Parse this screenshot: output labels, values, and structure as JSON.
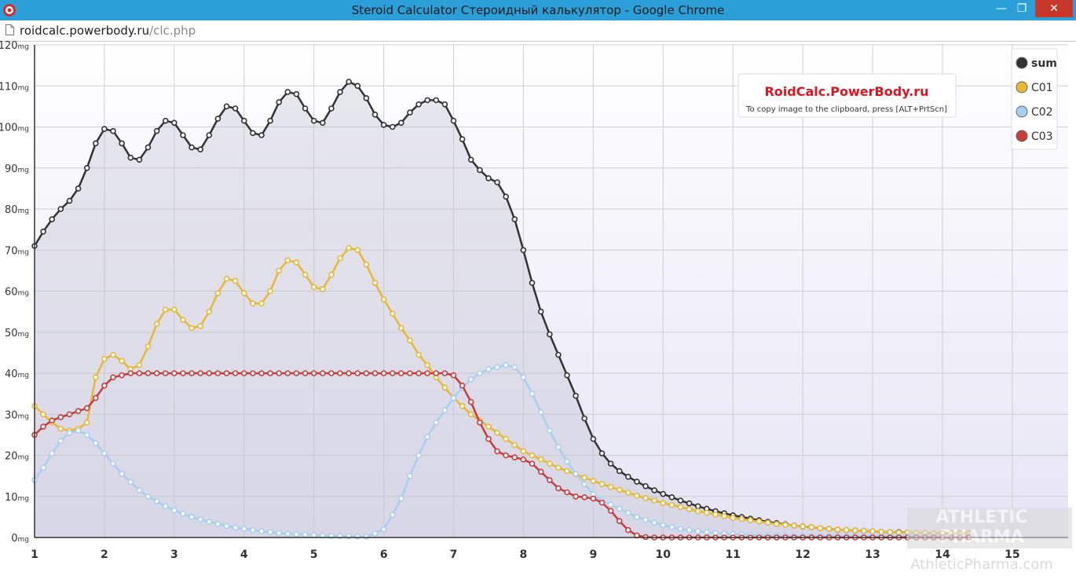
{
  "window": {
    "title": "Steroid Calculator Стероидный калькулятор - Google Chrome",
    "min_glyph": "—",
    "max_glyph": "❐",
    "close_glyph": "✕"
  },
  "address_bar": {
    "host": "roidcalc.powerbody.ru",
    "path": "/clc.php"
  },
  "watermark": {
    "line1": "ATHLETIC",
    "line2": "PHARMA",
    "url": "AthleticPharma.com"
  },
  "chart_data": {
    "type": "line",
    "title": "RoidCalc.PowerBody.ru",
    "subtitle": "To copy image to the clipboard, press [ALT+PrtScn]",
    "xlabel": "",
    "ylabel": "",
    "xlim": [
      1,
      15.8
    ],
    "ylim": [
      0,
      120
    ],
    "x_ticks": [
      1,
      2,
      3,
      4,
      5,
      6,
      7,
      8,
      9,
      10,
      11,
      12,
      13,
      14,
      15
    ],
    "y_ticks": [
      0,
      10,
      20,
      30,
      40,
      50,
      60,
      70,
      80,
      90,
      100,
      110,
      120
    ],
    "y_unit": "mg",
    "step": 0.125,
    "grid": true,
    "legend_position": "top-right",
    "series": [
      {
        "name": "sum",
        "color": "#333333",
        "fill": true,
        "values": [
          71,
          74.5,
          77.5,
          80,
          82,
          85,
          90,
          96,
          99.5,
          99,
          96,
          92.5,
          92,
          95,
          99,
          101.5,
          101,
          98,
          95,
          94.5,
          98,
          102,
          105,
          104.5,
          101.5,
          98.5,
          98,
          101.5,
          106,
          108.5,
          108,
          104.5,
          101.5,
          101,
          104.5,
          108.5,
          111,
          110,
          107,
          103,
          100.5,
          100,
          101,
          103.5,
          105.5,
          106.5,
          106.5,
          105.5,
          101.5,
          97,
          92,
          89.5,
          87.5,
          86.5,
          83,
          77.5,
          70,
          62,
          55,
          49.5,
          44.5,
          39.5,
          34.5,
          29,
          24,
          20.5,
          18,
          16.2,
          14.8,
          13.6,
          12.5,
          11.5,
          10.6,
          9.8,
          9,
          8.3,
          7.6,
          7,
          6.4,
          5.9,
          5.4,
          5,
          4.6,
          4.2,
          3.8,
          3.5,
          3.2,
          2.9,
          2.7,
          2.5,
          2.3,
          2.1,
          1.9,
          1.8,
          1.7,
          1.6,
          1.5,
          1.4,
          1.3,
          1.3,
          1.2,
          1.1,
          1.1,
          1.0,
          1.0,
          1.0,
          1.0,
          1.0
        ]
      },
      {
        "name": "C01",
        "color": "#e8b830",
        "fill": false,
        "values": [
          32,
          30,
          28,
          26.5,
          26,
          26.5,
          28,
          39,
          43.5,
          44.5,
          43,
          41,
          42,
          46.5,
          52,
          55.5,
          55.5,
          53,
          51,
          51.5,
          55,
          59.5,
          63,
          62.5,
          59.5,
          57,
          57,
          60,
          65,
          67.5,
          67,
          64,
          61,
          60.5,
          64,
          68,
          70.5,
          70,
          66.5,
          62,
          58,
          54.5,
          51,
          48,
          44.5,
          42,
          39,
          36.5,
          34,
          32,
          30,
          28.5,
          27,
          25.5,
          24,
          22.5,
          21,
          20,
          19,
          18,
          17,
          16.2,
          15.4,
          14.6,
          13.8,
          13,
          12.3,
          11.6,
          10.9,
          10.2,
          9.6,
          9,
          8.4,
          7.9,
          7.4,
          6.9,
          6.4,
          6,
          5.6,
          5.2,
          4.8,
          4.5,
          4.2,
          3.9,
          3.6,
          3.3,
          3.1,
          2.9,
          2.7,
          2.5,
          2.3,
          2.1,
          1.9,
          1.8,
          1.7,
          1.6,
          1.5,
          1.4,
          1.3,
          1.2,
          1.2,
          1.1,
          1.1,
          1.0,
          1.0,
          1.0,
          1.0,
          1.0
        ]
      },
      {
        "name": "C02",
        "color": "#a7cff0",
        "fill": false,
        "values": [
          14,
          17,
          20.5,
          23.5,
          25.5,
          26,
          25,
          23,
          20.5,
          18,
          15.5,
          13.5,
          11.5,
          10,
          8.8,
          7.6,
          6.6,
          5.8,
          5,
          4.4,
          3.8,
          3.3,
          2.8,
          2.4,
          2.1,
          1.8,
          1.5,
          1.3,
          1.1,
          0.9,
          0.8,
          0.7,
          0.6,
          0.5,
          0.4,
          0.35,
          0.3,
          0.25,
          0.2,
          1,
          2,
          5.5,
          9.5,
          15,
          20,
          24.5,
          28,
          31,
          34,
          36.5,
          38.5,
          40,
          41,
          41.5,
          42,
          41.5,
          39,
          35,
          30.5,
          26,
          22,
          18.5,
          15.5,
          13,
          10.5,
          9,
          8,
          7,
          6,
          5,
          4.3,
          3.6,
          3,
          2.5,
          2.1,
          1.8,
          1.5,
          1.3,
          1.1,
          0.9,
          0.8,
          0.7,
          0.6,
          0.5,
          0.5,
          0.4,
          0.4,
          0.3,
          0.3,
          0.3,
          0.3,
          0.3,
          0.3,
          0.3,
          0.3,
          0.3,
          0.3,
          0.3,
          0.3,
          0.3,
          0.3,
          0.3,
          0.3,
          0.3,
          0.3,
          0.3,
          0.3,
          0.3
        ]
      },
      {
        "name": "C03",
        "color": "#c83c3c",
        "fill": false,
        "values": [
          25,
          27,
          28.5,
          29.3,
          30,
          30.8,
          31.5,
          34,
          37,
          39,
          39.5,
          40,
          40,
          40,
          40,
          40,
          40,
          40,
          40,
          40,
          40,
          40,
          40,
          40,
          40,
          40,
          40,
          40,
          40,
          40,
          40,
          40,
          40,
          40,
          40,
          40,
          40,
          40,
          40,
          40,
          40,
          40,
          40,
          40,
          40,
          40,
          40,
          40,
          39.5,
          37,
          33,
          28,
          24,
          21,
          20,
          19.5,
          19,
          18,
          16,
          14,
          12,
          11,
          10,
          9.8,
          9.5,
          8.5,
          6.5,
          4,
          1.8,
          0.5,
          0.1,
          0,
          0,
          0,
          0,
          0,
          0,
          0,
          0,
          0,
          0,
          0,
          0,
          0,
          0,
          0,
          0,
          0,
          0,
          0,
          0,
          0,
          0,
          0,
          0,
          0,
          0,
          0,
          0,
          0,
          0,
          0,
          0,
          0,
          0,
          0,
          0,
          0
        ]
      }
    ]
  }
}
